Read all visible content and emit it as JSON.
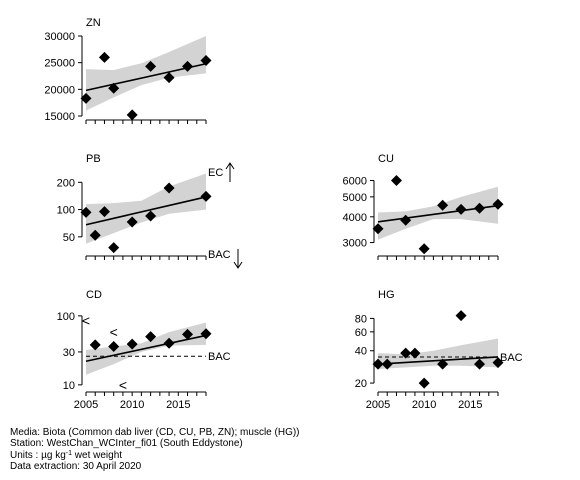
{
  "chart_data": [
    {
      "type": "scatter",
      "title": "ZN",
      "ylim": [
        15000,
        30000
      ],
      "yticks": [
        15000,
        20000,
        25000,
        30000
      ],
      "xlim": [
        2005,
        2018
      ],
      "show_xtick_labels": false,
      "x": [
        2005,
        2007,
        2008,
        2010,
        2012,
        2014,
        2016,
        2018
      ],
      "y": [
        18300,
        26000,
        20200,
        15200,
        24300,
        22200,
        24300,
        25400
      ],
      "trend": [
        [
          2005,
          19800
        ],
        [
          2018,
          24800
        ]
      ],
      "band": [
        [
          2005,
          16000,
          23800
        ],
        [
          2008,
          18500,
          23600
        ],
        [
          2011,
          20800,
          24900
        ],
        [
          2014,
          22200,
          27000
        ],
        [
          2018,
          23000,
          30000
        ]
      ],
      "annotations": []
    },
    {
      "type": "scatter",
      "title": "PB",
      "ylim": [
        34,
        260
      ],
      "log": true,
      "yticks": [
        50,
        100,
        200
      ],
      "xlim": [
        2005,
        2018
      ],
      "show_xtick_labels": false,
      "x": [
        2005,
        2006,
        2007,
        2008,
        2010,
        2012,
        2014,
        2018
      ],
      "y": [
        93,
        52,
        95,
        38,
        73,
        85,
        173,
        140
      ],
      "trend": [
        [
          2005,
          68
        ],
        [
          2018,
          138
        ]
      ],
      "band": [
        [
          2005,
          42,
          115
        ],
        [
          2008,
          55,
          118
        ],
        [
          2011,
          72,
          125
        ],
        [
          2014,
          90,
          180
        ],
        [
          2018,
          100,
          250
        ]
      ],
      "ref_lines": [],
      "markers": [
        {
          "label": "EC",
          "direction": "up"
        },
        {
          "label": "BAC",
          "direction": "down"
        }
      ],
      "annotations": []
    },
    {
      "type": "scatter",
      "title": "CU",
      "ylim": [
        2700,
        6600
      ],
      "log": true,
      "yticks": [
        3000,
        4000,
        5000,
        6000
      ],
      "xlim": [
        2005,
        2018
      ],
      "show_xtick_labels": false,
      "x": [
        2005,
        2007,
        2008,
        2010,
        2012,
        2014,
        2016,
        2018
      ],
      "y": [
        3500,
        6000,
        3850,
        2800,
        4550,
        4350,
        4400,
        4600
      ],
      "trend": [
        [
          2005,
          3780
        ],
        [
          2018,
          4530
        ]
      ],
      "band": [
        [
          2005,
          3100,
          4200
        ],
        [
          2008,
          3500,
          4250
        ],
        [
          2011,
          3900,
          4500
        ],
        [
          2014,
          3900,
          5000
        ],
        [
          2018,
          3700,
          5600
        ]
      ],
      "annotations": []
    },
    {
      "type": "scatter",
      "title": "CD",
      "ylim": [
        9,
        130
      ],
      "log": true,
      "yticks": [
        10,
        30,
        100
      ],
      "xticks": [
        2005,
        2010,
        2015
      ],
      "xlim": [
        2005,
        2018
      ],
      "show_xtick_labels": true,
      "x": [
        2006,
        2008,
        2010,
        2012,
        2014,
        2016,
        2018
      ],
      "y": [
        38,
        36,
        39,
        50,
        40,
        54,
        55
      ],
      "trend": [
        [
          2005,
          22
        ],
        [
          2018,
          52
        ]
      ],
      "band": [
        [
          2005,
          14,
          32
        ],
        [
          2008,
          20,
          36
        ],
        [
          2011,
          30,
          40
        ],
        [
          2014,
          37,
          58
        ],
        [
          2018,
          38,
          80
        ]
      ],
      "ref_lines": [
        {
          "label": "BAC",
          "value": 26,
          "style": "dashed"
        }
      ],
      "censored": [
        {
          "x": 2005,
          "y": 85,
          "symbol": "<"
        },
        {
          "x": 2008,
          "y": 58,
          "symbol": "<"
        },
        {
          "x": 2009,
          "y": 10,
          "symbol": "<"
        }
      ],
      "annotations": []
    },
    {
      "type": "scatter",
      "title": "HG",
      "ylim": [
        18,
        100
      ],
      "log": true,
      "yticks": [
        20,
        40,
        60,
        80
      ],
      "xticks": [
        2005,
        2010,
        2015
      ],
      "xlim": [
        2005,
        2018
      ],
      "show_xtick_labels": true,
      "x": [
        2005,
        2006,
        2008,
        2009,
        2010,
        2012,
        2014,
        2016,
        2018
      ],
      "y": [
        30,
        30,
        38,
        38,
        20,
        30,
        85,
        30,
        31
      ],
      "trend": [
        [
          2005,
          30
        ],
        [
          2018,
          35
        ]
      ],
      "band": [
        [
          2005,
          27,
          38
        ],
        [
          2008,
          28,
          37
        ],
        [
          2011,
          29,
          40
        ],
        [
          2014,
          29,
          45
        ],
        [
          2018,
          28,
          52
        ]
      ],
      "ref_lines": [
        {
          "label": "BAC",
          "value": 35,
          "style": "dashed"
        }
      ],
      "annotations": []
    }
  ],
  "footer": {
    "media": "Media: Biota (Common dab liver (CD, CU, PB, ZN); muscle (HG))",
    "station": "Station: WestChan_WCInter_fi01 (South Eddystone)",
    "units_prefix": "Units : µg kg",
    "units_sup": "-1",
    "units_suffix": " wet weight",
    "extraction": "Data extraction: 30 April 2020"
  }
}
